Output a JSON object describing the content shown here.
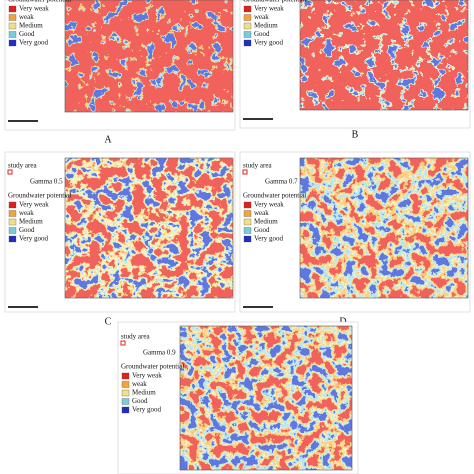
{
  "legend_colors": [
    "#e3201b",
    "#f3a33a",
    "#efe08a",
    "#7ccbd8",
    "#1f2fbf"
  ],
  "panels": [
    {
      "label": "A",
      "legend_title": "Groundwater potential",
      "legend": [
        "Very weak",
        "weak",
        "Medium",
        "Good",
        "Very good"
      ]
    },
    {
      "label": "B",
      "legend_title": "Groundwater potential",
      "legend": [
        "Very weak",
        "weak",
        "Medium",
        "Good",
        "Very good"
      ]
    },
    {
      "label": "C",
      "study_area": "study area",
      "gamma": "Gamma 0.5",
      "legend_title": "Groundwater potential",
      "legend": [
        "Very weak",
        "weak",
        "Medium",
        "Good",
        "Very good"
      ]
    },
    {
      "label": "D",
      "study_area": "study area",
      "gamma": "Gamma 0.7",
      "legend_title": "Groundwater potential",
      "legend": [
        "Very weak",
        "weak",
        "Medium",
        "Good",
        "Very good"
      ]
    },
    {
      "study_area": "study area",
      "gamma": "Gamma 0.9",
      "legend_title": "Groundwater potential",
      "legend": [
        "Very weak",
        "weak",
        "Medium",
        "Good",
        "Very good"
      ]
    }
  ]
}
